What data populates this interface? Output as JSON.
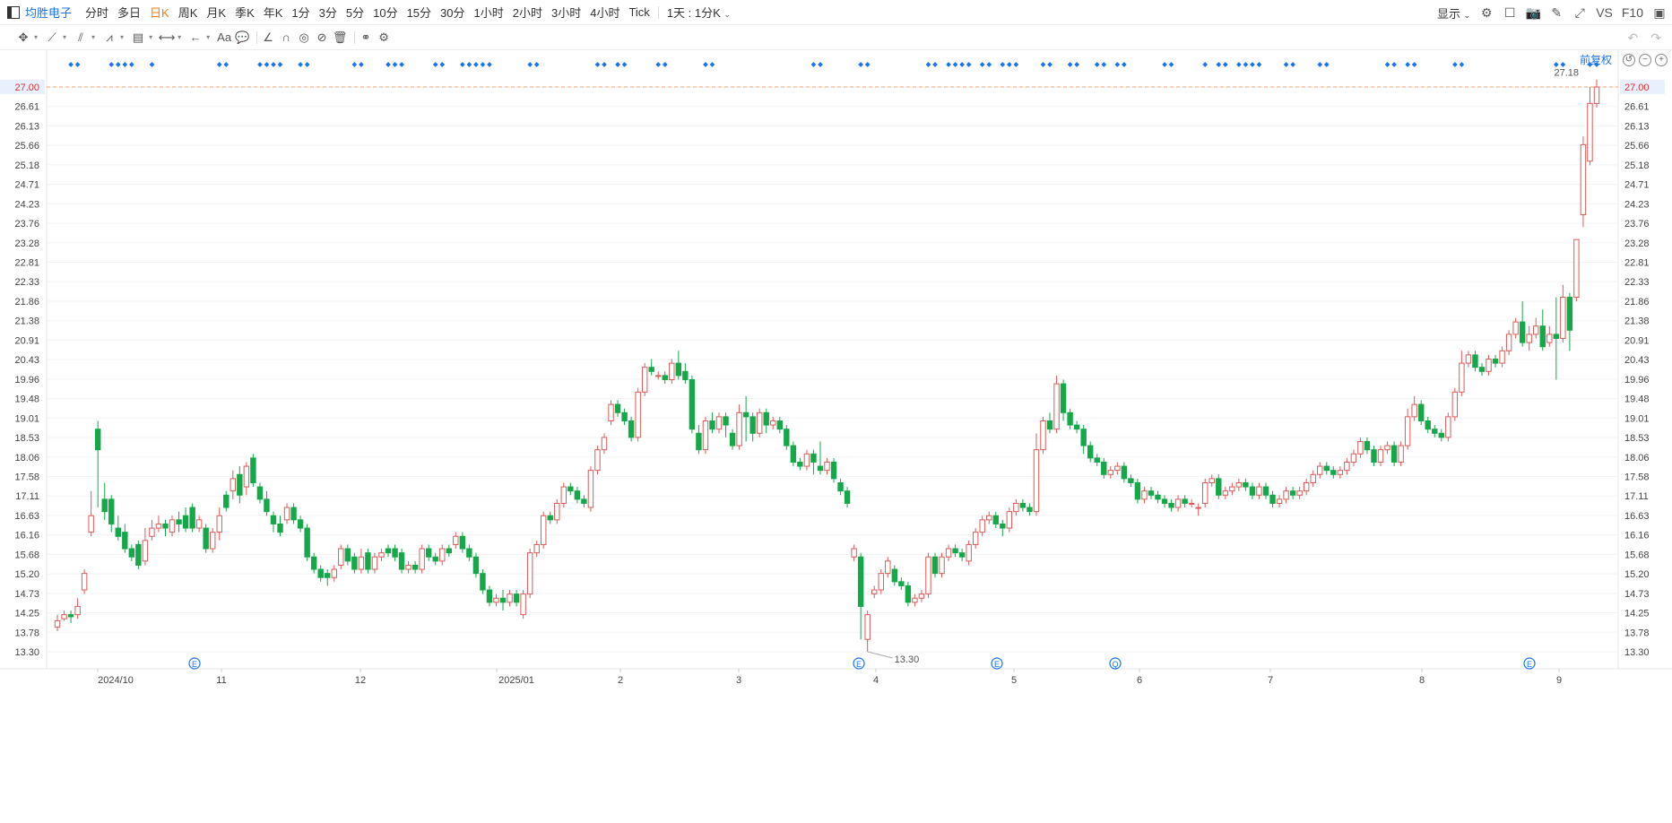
{
  "header": {
    "stock_name": "均胜电子",
    "periods": [
      "分时",
      "多日",
      "日K",
      "周K",
      "月K",
      "季K",
      "年K",
      "1分",
      "3分",
      "5分",
      "10分",
      "15分",
      "30分",
      "1小时",
      "2小时",
      "3小时",
      "4小时",
      "Tick"
    ],
    "active_period": "日K",
    "range_select": "1天 : 1分K",
    "display_label": "显示",
    "vs_label": "VS",
    "f10_label": "F10"
  },
  "toolbar": {
    "tools": [
      "crosshair-move-icon",
      "line-tool-icon",
      "channel-tool-icon",
      "wave-tool-icon",
      "pattern-tool-icon",
      "measure-tool-icon",
      "arrow-tool-icon",
      "text-tool-icon",
      "comment-tool-icon",
      "angle-tool-icon",
      "magnet-icon",
      "visibility-icon",
      "hide-icon",
      "delete-icon",
      "link-icon",
      "settings-icon"
    ],
    "fq_label": "前复权"
  },
  "colors": {
    "up": "#e05858",
    "down": "#14a84a",
    "price_line": "#f0a070",
    "marker": "#1a73e8",
    "axis_text": "#444444",
    "price_tag_bg": "#e8f0fd",
    "price_tag_text": "#e03030"
  },
  "chart_data": {
    "type": "candlestick",
    "y_ticks": [
      "27.00",
      "26.61",
      "26.13",
      "25.66",
      "25.18",
      "24.71",
      "24.23",
      "23.76",
      "23.28",
      "22.81",
      "22.33",
      "21.86",
      "21.38",
      "20.91",
      "20.43",
      "19.96",
      "19.48",
      "19.01",
      "18.53",
      "18.06",
      "17.58",
      "17.11",
      "16.63",
      "16.16",
      "15.68",
      "15.20",
      "14.73",
      "14.25",
      "13.78",
      "13.30"
    ],
    "ylim": [
      13.3,
      27.0
    ],
    "x_labels": [
      "2024/10",
      "11",
      "12",
      "2025/01",
      "2",
      "3",
      "4",
      "5",
      "6",
      "7",
      "8",
      "9"
    ],
    "current_price": "27.00",
    "high_label": "27.18",
    "low_label": "13.30",
    "event_markers": [
      "E",
      "E",
      "E",
      "Q",
      "E"
    ],
    "candles": [
      [
        13.9,
        14.05,
        13.8,
        14.2
      ],
      [
        14.1,
        14.2,
        14.05,
        14.3
      ],
      [
        14.2,
        14.15,
        14.0,
        14.3
      ],
      [
        14.2,
        14.4,
        14.1,
        14.6
      ],
      [
        14.8,
        15.2,
        14.7,
        15.3
      ],
      [
        16.2,
        16.6,
        16.1,
        17.2
      ],
      [
        18.7,
        18.2,
        16.8,
        18.9
      ],
      [
        17.0,
        16.7,
        16.5,
        17.4
      ],
      [
        17.0,
        16.4,
        16.2,
        17.1
      ],
      [
        16.3,
        16.1,
        16.0,
        16.6
      ],
      [
        16.2,
        15.8,
        15.7,
        16.4
      ],
      [
        15.8,
        15.6,
        15.5,
        15.9
      ],
      [
        15.9,
        15.4,
        15.3,
        16.0
      ],
      [
        15.5,
        16.0,
        15.4,
        16.3
      ],
      [
        16.1,
        16.3,
        16.0,
        16.5
      ],
      [
        16.3,
        16.4,
        16.2,
        16.6
      ],
      [
        16.4,
        16.3,
        16.1,
        16.5
      ],
      [
        16.2,
        16.5,
        16.1,
        16.6
      ],
      [
        16.5,
        16.4,
        16.2,
        16.7
      ],
      [
        16.6,
        16.3,
        16.2,
        16.8
      ],
      [
        16.8,
        16.3,
        16.2,
        16.9
      ],
      [
        16.3,
        16.5,
        16.2,
        16.6
      ],
      [
        16.3,
        15.8,
        15.7,
        16.4
      ],
      [
        15.8,
        16.2,
        15.7,
        16.3
      ],
      [
        16.2,
        16.6,
        16.0,
        16.8
      ],
      [
        17.1,
        16.8,
        16.7,
        17.2
      ],
      [
        17.2,
        17.5,
        17.0,
        17.7
      ],
      [
        17.6,
        17.1,
        16.9,
        17.8
      ],
      [
        17.3,
        17.8,
        17.1,
        17.9
      ],
      [
        18.0,
        17.4,
        17.3,
        18.1
      ],
      [
        17.3,
        17.0,
        16.9,
        17.4
      ],
      [
        17.0,
        16.7,
        16.6,
        17.2
      ],
      [
        16.6,
        16.4,
        16.2,
        16.7
      ],
      [
        16.4,
        16.2,
        16.1,
        16.6
      ],
      [
        16.5,
        16.8,
        16.4,
        16.9
      ],
      [
        16.8,
        16.5,
        16.4,
        16.9
      ],
      [
        16.5,
        16.3,
        16.2,
        16.6
      ],
      [
        16.3,
        15.6,
        15.5,
        16.4
      ],
      [
        15.6,
        15.3,
        15.2,
        15.7
      ],
      [
        15.3,
        15.1,
        15.0,
        15.4
      ],
      [
        15.2,
        15.1,
        14.9,
        15.3
      ],
      [
        15.1,
        15.3,
        15.0,
        15.4
      ],
      [
        15.4,
        15.8,
        15.3,
        15.9
      ],
      [
        15.8,
        15.5,
        15.4,
        15.9
      ],
      [
        15.6,
        15.3,
        15.2,
        15.7
      ],
      [
        15.3,
        15.6,
        15.2,
        15.8
      ],
      [
        15.7,
        15.3,
        15.2,
        15.8
      ],
      [
        15.3,
        15.6,
        15.2,
        15.7
      ],
      [
        15.6,
        15.7,
        15.5,
        15.8
      ],
      [
        15.8,
        15.7,
        15.6,
        15.9
      ],
      [
        15.8,
        15.6,
        15.5,
        15.9
      ],
      [
        15.7,
        15.3,
        15.2,
        15.8
      ],
      [
        15.3,
        15.4,
        15.2,
        15.5
      ],
      [
        15.4,
        15.3,
        15.2,
        15.5
      ],
      [
        15.3,
        15.8,
        15.2,
        15.9
      ],
      [
        15.8,
        15.6,
        15.5,
        15.9
      ],
      [
        15.6,
        15.5,
        15.4,
        15.7
      ],
      [
        15.5,
        15.8,
        15.4,
        15.9
      ],
      [
        15.8,
        15.7,
        15.6,
        15.9
      ],
      [
        15.9,
        16.1,
        15.8,
        16.2
      ],
      [
        16.1,
        15.8,
        15.7,
        16.2
      ],
      [
        15.8,
        15.6,
        15.5,
        15.9
      ],
      [
        15.6,
        15.2,
        15.1,
        15.7
      ],
      [
        15.2,
        14.8,
        14.7,
        15.3
      ],
      [
        14.8,
        14.5,
        14.4,
        14.9
      ],
      [
        14.5,
        14.6,
        14.4,
        14.7
      ],
      [
        14.6,
        14.5,
        14.3,
        14.8
      ],
      [
        14.5,
        14.7,
        14.4,
        14.8
      ],
      [
        14.7,
        14.5,
        14.4,
        14.8
      ],
      [
        14.2,
        14.7,
        14.1,
        14.8
      ],
      [
        14.7,
        15.7,
        14.6,
        15.8
      ],
      [
        15.7,
        15.9,
        15.6,
        16.0
      ],
      [
        15.9,
        16.6,
        15.8,
        16.7
      ],
      [
        16.6,
        16.5,
        16.4,
        16.7
      ],
      [
        16.5,
        16.9,
        16.4,
        17.0
      ],
      [
        16.9,
        17.3,
        16.8,
        17.4
      ],
      [
        17.3,
        17.2,
        17.1,
        17.4
      ],
      [
        17.2,
        17.0,
        16.9,
        17.3
      ],
      [
        17.0,
        16.9,
        16.8,
        17.1
      ],
      [
        16.8,
        17.7,
        16.7,
        17.8
      ],
      [
        17.7,
        18.2,
        17.6,
        18.3
      ],
      [
        18.2,
        18.5,
        18.1,
        18.6
      ],
      [
        18.9,
        19.3,
        18.8,
        19.4
      ],
      [
        19.3,
        19.1,
        19.0,
        19.4
      ],
      [
        19.1,
        18.9,
        18.8,
        19.2
      ],
      [
        18.9,
        18.5,
        18.4,
        19.0
      ],
      [
        18.5,
        19.6,
        18.4,
        19.7
      ],
      [
        19.6,
        20.2,
        19.5,
        20.3
      ],
      [
        20.2,
        20.1,
        20.0,
        20.4
      ],
      [
        20.0,
        20.0,
        19.9,
        20.1
      ],
      [
        20.0,
        19.9,
        19.8,
        20.1
      ],
      [
        19.9,
        20.3,
        19.8,
        20.4
      ],
      [
        20.3,
        20.0,
        19.9,
        20.6
      ],
      [
        20.1,
        19.9,
        19.8,
        20.3
      ],
      [
        19.9,
        18.7,
        18.6,
        20.0
      ],
      [
        18.6,
        18.2,
        18.1,
        18.8
      ],
      [
        18.2,
        18.9,
        18.1,
        19.0
      ],
      [
        18.9,
        18.7,
        18.6,
        19.1
      ],
      [
        18.7,
        19.0,
        18.6,
        19.1
      ],
      [
        19.0,
        18.8,
        18.5,
        19.1
      ],
      [
        18.6,
        18.3,
        18.2,
        18.7
      ],
      [
        18.3,
        19.1,
        18.2,
        19.3
      ],
      [
        19.1,
        19.0,
        18.4,
        19.5
      ],
      [
        19.0,
        18.6,
        18.4,
        19.1
      ],
      [
        18.6,
        19.1,
        18.5,
        19.2
      ],
      [
        19.1,
        18.8,
        18.6,
        19.2
      ],
      [
        18.8,
        18.9,
        18.7,
        19.0
      ],
      [
        18.9,
        18.7,
        18.6,
        19.0
      ],
      [
        18.7,
        18.3,
        18.2,
        18.8
      ],
      [
        18.3,
        17.9,
        17.8,
        18.4
      ],
      [
        17.9,
        17.8,
        17.7,
        18.0
      ],
      [
        17.8,
        18.1,
        17.7,
        18.2
      ],
      [
        18.1,
        17.9,
        17.6,
        18.2
      ],
      [
        17.8,
        17.7,
        17.6,
        18.4
      ],
      [
        17.7,
        17.9,
        17.6,
        18.0
      ],
      [
        17.9,
        17.5,
        17.4,
        18.0
      ],
      [
        17.4,
        17.2,
        17.1,
        17.5
      ],
      [
        17.2,
        16.9,
        16.8,
        17.3
      ],
      [
        15.6,
        15.8,
        15.5,
        15.9
      ],
      [
        15.6,
        14.4,
        13.6,
        15.7
      ],
      [
        13.6,
        14.2,
        13.3,
        14.3
      ],
      [
        14.7,
        14.8,
        14.6,
        14.9
      ],
      [
        14.8,
        15.2,
        14.7,
        15.3
      ],
      [
        15.2,
        15.5,
        15.1,
        15.6
      ],
      [
        15.3,
        15.0,
        14.9,
        15.4
      ],
      [
        15.0,
        14.9,
        14.8,
        15.1
      ],
      [
        14.9,
        14.5,
        14.4,
        15.0
      ],
      [
        14.5,
        14.6,
        14.4,
        14.7
      ],
      [
        14.6,
        14.7,
        14.5,
        14.8
      ],
      [
        14.7,
        15.6,
        14.6,
        15.7
      ],
      [
        15.6,
        15.2,
        15.1,
        15.7
      ],
      [
        15.2,
        15.6,
        15.1,
        15.7
      ],
      [
        15.6,
        15.8,
        15.5,
        15.9
      ],
      [
        15.8,
        15.7,
        15.6,
        15.9
      ],
      [
        15.7,
        15.6,
        15.5,
        15.8
      ],
      [
        15.5,
        15.9,
        15.4,
        16.0
      ],
      [
        15.9,
        16.2,
        15.8,
        16.3
      ],
      [
        16.2,
        16.5,
        16.1,
        16.6
      ],
      [
        16.5,
        16.6,
        16.4,
        16.7
      ],
      [
        16.6,
        16.4,
        16.3,
        16.7
      ],
      [
        16.4,
        16.3,
        16.1,
        16.5
      ],
      [
        16.3,
        16.7,
        16.2,
        16.8
      ],
      [
        16.7,
        16.9,
        16.6,
        17.0
      ],
      [
        16.9,
        16.8,
        16.7,
        17.0
      ],
      [
        16.8,
        16.7,
        16.6,
        16.9
      ],
      [
        16.7,
        18.2,
        16.6,
        18.6
      ],
      [
        18.2,
        18.9,
        18.1,
        19.0
      ],
      [
        18.9,
        18.7,
        18.6,
        19.1
      ],
      [
        18.7,
        19.8,
        18.6,
        20.0
      ],
      [
        19.8,
        19.1,
        18.9,
        19.9
      ],
      [
        19.1,
        18.8,
        18.7,
        19.2
      ],
      [
        18.8,
        18.7,
        18.6,
        18.9
      ],
      [
        18.7,
        18.3,
        18.1,
        18.8
      ],
      [
        18.3,
        18.0,
        17.9,
        18.4
      ],
      [
        18.0,
        17.9,
        17.8,
        18.1
      ],
      [
        17.9,
        17.6,
        17.5,
        18.0
      ],
      [
        17.6,
        17.7,
        17.5,
        17.8
      ],
      [
        17.7,
        17.8,
        17.6,
        17.9
      ],
      [
        17.8,
        17.5,
        17.4,
        17.9
      ],
      [
        17.5,
        17.4,
        17.3,
        17.6
      ],
      [
        17.4,
        17.0,
        16.9,
        17.5
      ],
      [
        17.0,
        17.2,
        16.9,
        17.3
      ],
      [
        17.2,
        17.1,
        17.0,
        17.3
      ],
      [
        17.1,
        17.0,
        16.9,
        17.2
      ],
      [
        17.0,
        16.9,
        16.8,
        17.1
      ],
      [
        16.9,
        16.8,
        16.7,
        17.0
      ],
      [
        16.8,
        17.0,
        16.7,
        17.1
      ],
      [
        17.0,
        16.9,
        16.8,
        17.1
      ],
      [
        16.9,
        16.9,
        16.8,
        17.0
      ],
      [
        16.8,
        16.8,
        16.6,
        16.9
      ],
      [
        16.9,
        17.4,
        16.8,
        17.5
      ],
      [
        17.4,
        17.5,
        17.3,
        17.6
      ],
      [
        17.5,
        17.1,
        17.0,
        17.6
      ],
      [
        17.1,
        17.2,
        17.0,
        17.3
      ],
      [
        17.2,
        17.3,
        17.1,
        17.4
      ],
      [
        17.3,
        17.4,
        17.2,
        17.5
      ],
      [
        17.4,
        17.3,
        17.2,
        17.5
      ],
      [
        17.3,
        17.1,
        17.0,
        17.4
      ],
      [
        17.1,
        17.3,
        17.0,
        17.4
      ],
      [
        17.3,
        17.1,
        17.0,
        17.4
      ],
      [
        17.1,
        16.9,
        16.8,
        17.2
      ],
      [
        16.9,
        17.0,
        16.8,
        17.1
      ],
      [
        17.0,
        17.2,
        16.9,
        17.3
      ],
      [
        17.2,
        17.1,
        17.0,
        17.3
      ],
      [
        17.1,
        17.2,
        17.0,
        17.3
      ],
      [
        17.2,
        17.4,
        17.1,
        17.5
      ],
      [
        17.4,
        17.6,
        17.3,
        17.7
      ],
      [
        17.6,
        17.8,
        17.5,
        17.9
      ],
      [
        17.8,
        17.7,
        17.6,
        17.9
      ],
      [
        17.7,
        17.6,
        17.5,
        17.8
      ],
      [
        17.6,
        17.7,
        17.5,
        17.8
      ],
      [
        17.7,
        17.9,
        17.6,
        18.0
      ],
      [
        17.9,
        18.1,
        17.8,
        18.2
      ],
      [
        18.1,
        18.4,
        18.0,
        18.5
      ],
      [
        18.4,
        18.2,
        18.1,
        18.5
      ],
      [
        18.2,
        17.9,
        17.8,
        18.3
      ],
      [
        17.9,
        18.2,
        17.8,
        18.3
      ],
      [
        18.2,
        18.3,
        18.1,
        18.4
      ],
      [
        18.3,
        17.9,
        17.8,
        18.4
      ],
      [
        17.9,
        18.3,
        17.8,
        18.4
      ],
      [
        18.3,
        19.0,
        18.2,
        19.2
      ],
      [
        19.0,
        19.3,
        18.9,
        19.5
      ],
      [
        19.3,
        18.9,
        18.8,
        19.4
      ],
      [
        18.9,
        18.7,
        18.6,
        19.0
      ],
      [
        18.7,
        18.6,
        18.5,
        18.8
      ],
      [
        18.6,
        18.5,
        18.4,
        18.7
      ],
      [
        18.5,
        19.0,
        18.4,
        19.1
      ],
      [
        19.0,
        19.6,
        18.9,
        19.7
      ],
      [
        19.6,
        20.3,
        19.5,
        20.6
      ],
      [
        20.3,
        20.5,
        20.2,
        20.6
      ],
      [
        20.5,
        20.2,
        20.1,
        20.6
      ],
      [
        20.2,
        20.1,
        20.0,
        20.3
      ],
      [
        20.1,
        20.4,
        20.0,
        20.5
      ],
      [
        20.4,
        20.3,
        20.2,
        20.5
      ],
      [
        20.3,
        20.6,
        20.2,
        20.7
      ],
      [
        20.6,
        21.0,
        20.5,
        21.1
      ],
      [
        21.0,
        21.3,
        20.9,
        21.4
      ],
      [
        21.3,
        20.8,
        20.7,
        21.8
      ],
      [
        20.8,
        21.0,
        20.6,
        21.2
      ],
      [
        21.0,
        21.2,
        20.9,
        21.4
      ],
      [
        21.2,
        20.7,
        20.6,
        21.6
      ],
      [
        20.8,
        21.0,
        20.7,
        21.2
      ],
      [
        21.0,
        20.9,
        19.9,
        21.9
      ],
      [
        20.9,
        21.9,
        20.8,
        22.2
      ],
      [
        21.9,
        21.1,
        20.6,
        22.0
      ],
      [
        21.9,
        23.3,
        21.8,
        23.3
      ],
      [
        23.9,
        25.6,
        23.6,
        25.8
      ],
      [
        25.2,
        26.6,
        25.1,
        27.0
      ],
      [
        26.6,
        27.0,
        26.5,
        27.18
      ]
    ]
  }
}
